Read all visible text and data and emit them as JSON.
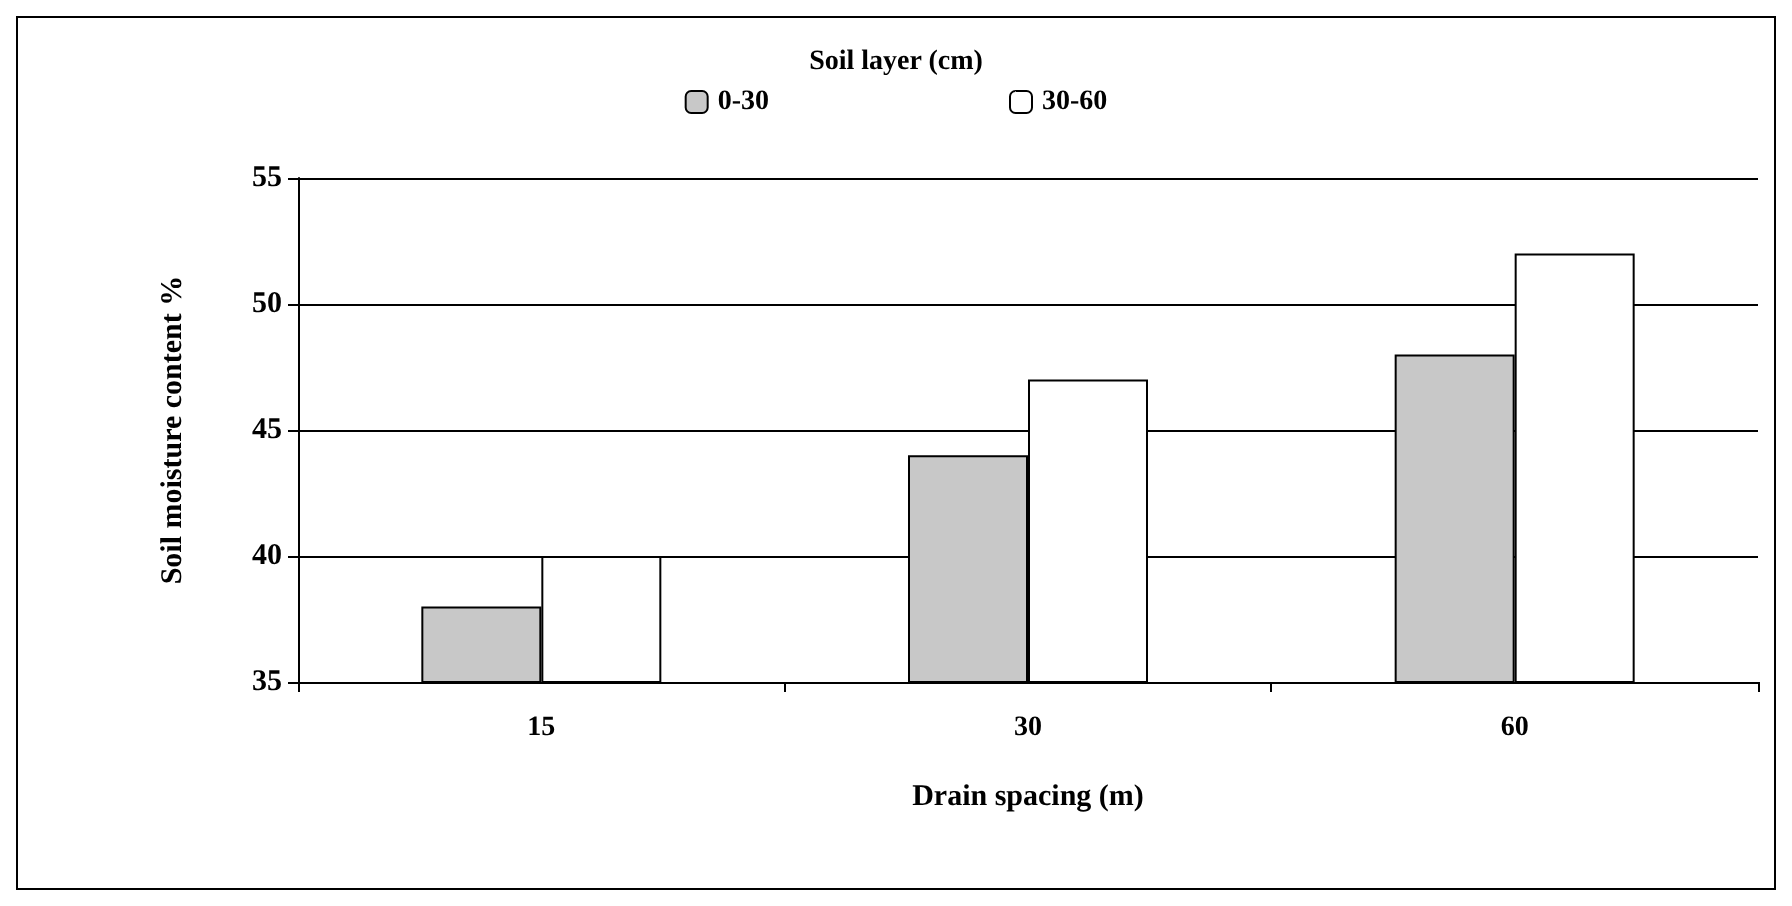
{
  "chart_data": {
    "type": "bar",
    "legend_title": "Soil layer (cm)",
    "xlabel": "Drain spacing (m)",
    "ylabel": "Soil moisture content %",
    "categories": [
      "15",
      "30",
      "60"
    ],
    "series": [
      {
        "name": "0-30",
        "color": "#c8c8c8",
        "values": [
          38,
          44,
          48
        ]
      },
      {
        "name": "30-60",
        "color": "#ffffff",
        "values": [
          40,
          47,
          52
        ]
      }
    ],
    "ylim": [
      35,
      55
    ],
    "yticks": [
      35,
      40,
      45,
      50,
      55
    ],
    "grid": "y",
    "legend": "top"
  }
}
